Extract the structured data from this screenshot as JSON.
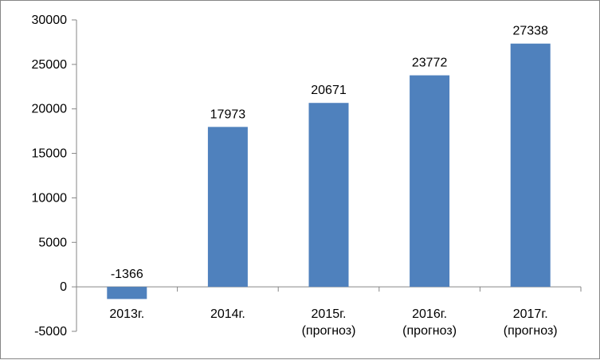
{
  "chart_data": {
    "type": "bar",
    "title": "",
    "xlabel": "",
    "ylabel": "",
    "categories": [
      [
        "2013г."
      ],
      [
        "2014г."
      ],
      [
        "2015г.",
        "(прогноз)"
      ],
      [
        "2016г.",
        "(прогноз)"
      ],
      [
        "2017г.",
        "(прогноз)"
      ]
    ],
    "values": [
      -1366,
      17973,
      20671,
      23772,
      27338
    ],
    "data_labels": [
      "-1366",
      "17973",
      "20671",
      "23772",
      "27338"
    ],
    "yticks": [
      "-5000",
      "0",
      "5000",
      "10000",
      "15000",
      "20000",
      "25000",
      "30000"
    ],
    "ylim": [
      -5000,
      30000
    ],
    "grid": false,
    "legend": "none",
    "bar_color": "#4F81BD"
  }
}
